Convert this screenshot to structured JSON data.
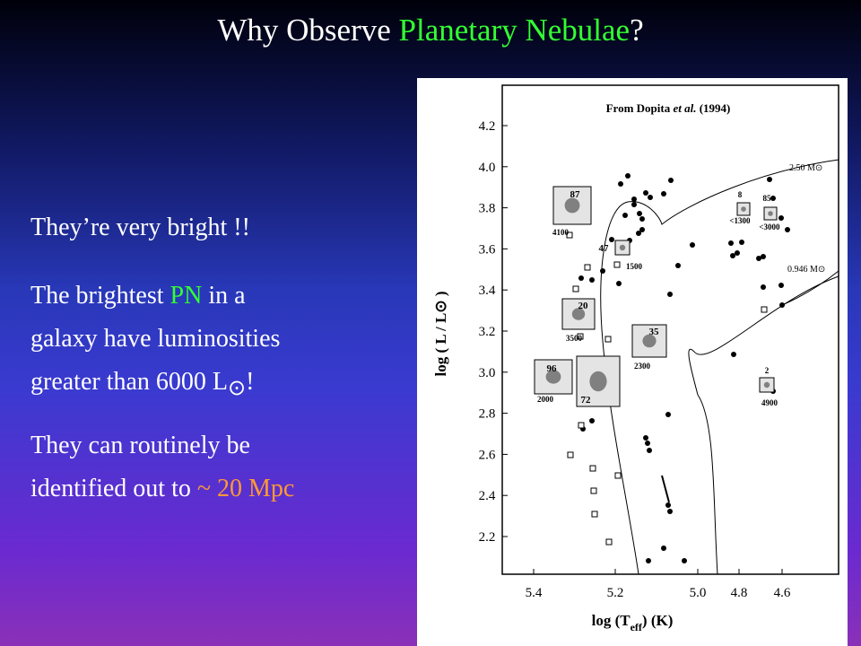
{
  "slide": {
    "title": [
      "Why Observe ",
      "Planetary Nebulae",
      "?"
    ],
    "bullets": [
      [
        [
          "They’re very bright !!"
        ]
      ],
      [
        [
          "The brightest ",
          "PN",
          " in a"
        ],
        [
          "galaxy have luminosities"
        ],
        [
          "greater than 6000 L",
          "⊙",
          "!"
        ]
      ],
      [
        [
          "They can routinely be"
        ],
        [
          "identified out to ",
          "~ 20 Mpc"
        ]
      ]
    ]
  },
  "figure": {
    "source": [
      "From Dopita ",
      "et al.",
      " (1994)"
    ],
    "y_label": "log ( L / L⊙ )",
    "x_label": [
      "log (T",
      "eff",
      ") (K)"
    ],
    "yticks": [
      "4.2",
      "4.0",
      "3.8",
      "3.6",
      "3.4",
      "3.2",
      "3.0",
      "2.8",
      "2.6",
      "2.4",
      "2.2"
    ],
    "xticks": [
      "5.4",
      "5.2",
      "5.0",
      "4.8",
      "4.6"
    ],
    "tracks": [
      "2.50 M⊙",
      "0.946 M⊙"
    ],
    "annotations": [
      "87",
      "4100",
      "47",
      "1500",
      "20",
      "3500",
      "35",
      "2300",
      "96",
      "2000",
      "72",
      "8",
      "<1300",
      "85",
      "<3000",
      "2",
      "4900"
    ]
  }
}
